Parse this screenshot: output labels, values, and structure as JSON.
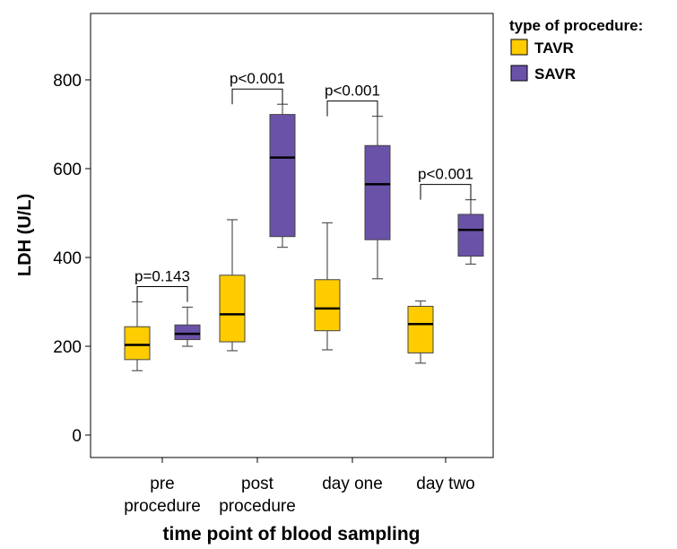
{
  "chart_data": {
    "type": "box",
    "xlabel": "time point of blood sampling",
    "ylabel": "LDH (U/L)",
    "ylim": [
      -50,
      950
    ],
    "yticks": [
      0,
      200,
      400,
      600,
      800
    ],
    "categories": [
      {
        "lines": [
          "pre",
          "procedure"
        ]
      },
      {
        "lines": [
          "post",
          "procedure"
        ]
      },
      {
        "lines": [
          "day one"
        ]
      },
      {
        "lines": [
          "day two"
        ]
      }
    ],
    "legend": {
      "title": "type of procedure:",
      "position": "top-right"
    },
    "series": [
      {
        "name": "TAVR",
        "color": "#FFCC00",
        "boxes": [
          {
            "min": 145,
            "q1": 170,
            "median": 203,
            "q3": 244,
            "max": 300
          },
          {
            "min": 190,
            "q1": 210,
            "median": 272,
            "q3": 360,
            "max": 485
          },
          {
            "min": 192,
            "q1": 235,
            "median": 285,
            "q3": 350,
            "max": 478
          },
          {
            "min": 162,
            "q1": 185,
            "median": 250,
            "q3": 290,
            "max": 302
          }
        ]
      },
      {
        "name": "SAVR",
        "color": "#6A52A8",
        "boxes": [
          {
            "min": 200,
            "q1": 215,
            "median": 228,
            "q3": 248,
            "max": 288
          },
          {
            "min": 423,
            "q1": 447,
            "median": 625,
            "q3": 722,
            "max": 745
          },
          {
            "min": 352,
            "q1": 440,
            "median": 565,
            "q3": 652,
            "max": 718
          },
          {
            "min": 385,
            "q1": 403,
            "median": 462,
            "q3": 497,
            "max": 530
          }
        ]
      }
    ],
    "annotations": [
      {
        "group": 0,
        "text": "p=0.143"
      },
      {
        "group": 1,
        "text": "p<0.001"
      },
      {
        "group": 2,
        "text": "p<0.001"
      },
      {
        "group": 3,
        "text": "p<0.001"
      }
    ]
  }
}
